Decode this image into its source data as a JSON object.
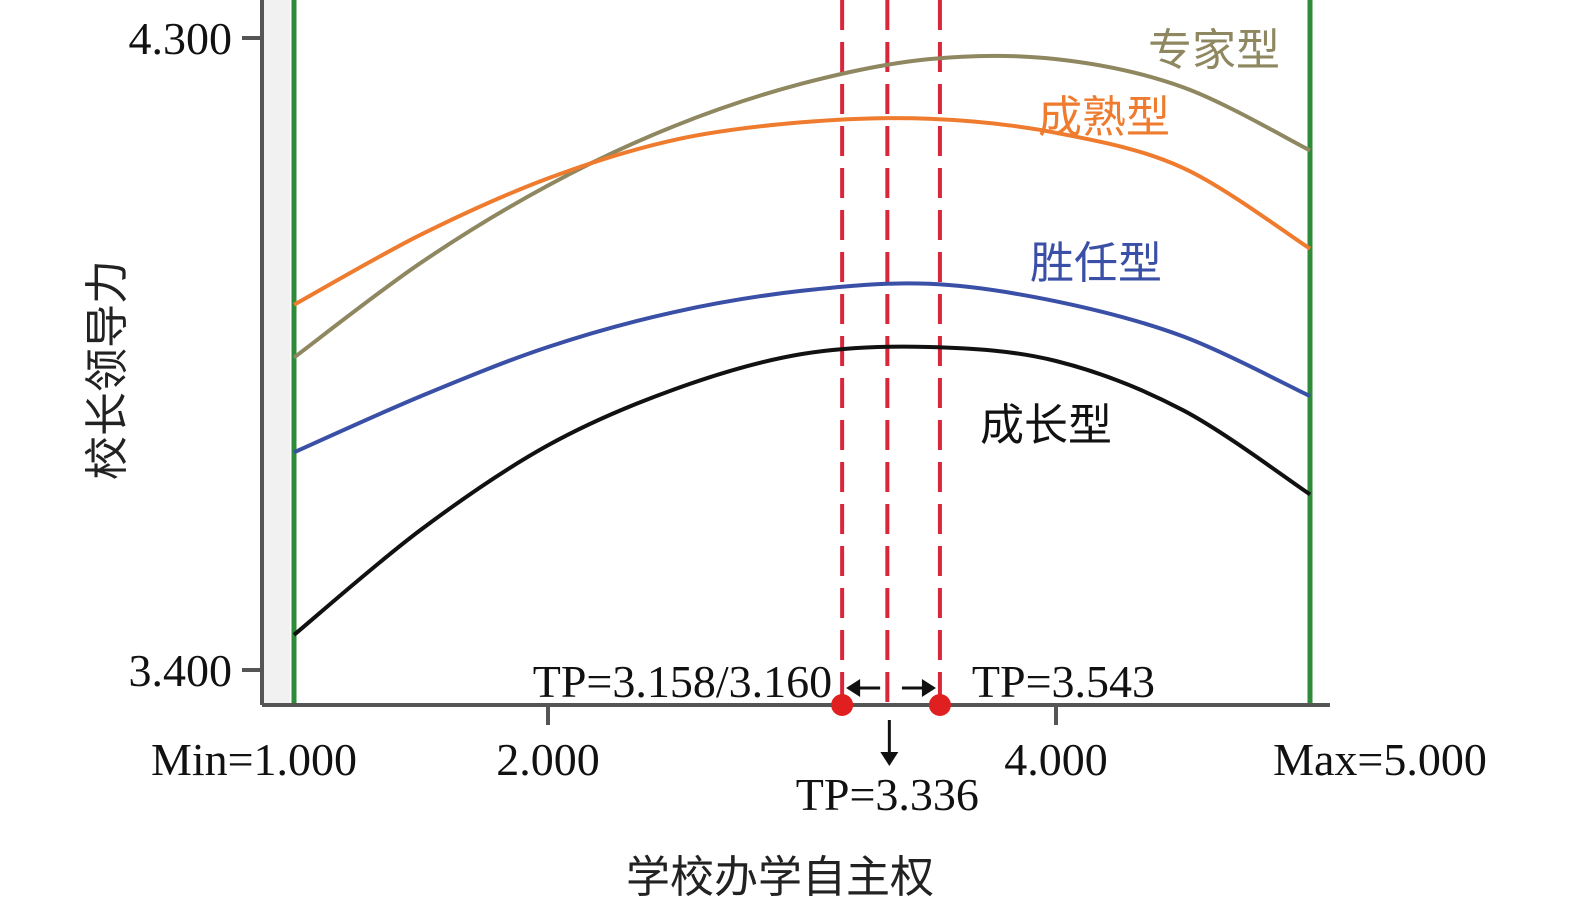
{
  "chart_data": {
    "type": "line",
    "xlabel": "学校办学自主权",
    "ylabel": "校长领导力",
    "xlim": [
      1.0,
      5.0
    ],
    "ylim": [
      3.4,
      4.3
    ],
    "x_ticks": [
      {
        "value": 1.0,
        "label": "Min=1.000"
      },
      {
        "value": 2.0,
        "label": "2.000"
      },
      {
        "value": 4.0,
        "label": "4.000"
      },
      {
        "value": 5.0,
        "label": "Max=5.000"
      }
    ],
    "y_ticks": [
      {
        "value": 4.3,
        "label": "4.300"
      },
      {
        "value": 3.4,
        "label": "3.400"
      }
    ],
    "boundary_lines": [
      1.0,
      5.0
    ],
    "turning_points": [
      {
        "value": 3.158,
        "label": "TP=3.158/3.160"
      },
      {
        "value": 3.336,
        "label": "TP=3.336"
      },
      {
        "value": 3.543,
        "label": "TP=3.543"
      }
    ],
    "series": [
      {
        "name": "专家型",
        "color": "#8e8760",
        "x": [
          1.0,
          1.5,
          2.0,
          2.5,
          3.0,
          3.5,
          4.0,
          4.5,
          5.0
        ],
        "y": [
          3.845,
          3.98,
          4.09,
          4.175,
          4.235,
          4.27,
          4.27,
          4.23,
          4.14
        ]
      },
      {
        "name": "成熟型",
        "color": "#ee7b2e",
        "x": [
          1.0,
          1.5,
          2.0,
          2.5,
          3.0,
          3.5,
          4.0,
          4.5,
          5.0
        ],
        "y": [
          3.92,
          4.02,
          4.1,
          4.155,
          4.18,
          4.185,
          4.165,
          4.115,
          4.0
        ]
      },
      {
        "name": "胜任型",
        "color": "#3a4fa6",
        "x": [
          1.0,
          1.5,
          2.0,
          2.5,
          3.0,
          3.5,
          4.0,
          4.5,
          5.0
        ],
        "y": [
          3.71,
          3.79,
          3.86,
          3.91,
          3.94,
          3.95,
          3.925,
          3.875,
          3.79
        ]
      },
      {
        "name": "成长型",
        "color": "#111111",
        "x": [
          1.0,
          1.5,
          2.0,
          2.5,
          3.0,
          3.5,
          4.0,
          4.5,
          5.0
        ],
        "y": [
          3.45,
          3.6,
          3.72,
          3.8,
          3.85,
          3.86,
          3.84,
          3.77,
          3.65
        ]
      }
    ],
    "colors": {
      "boundary": "#2e8b3a",
      "turning_point_line": "#d9263b",
      "turning_point_marker": "#e02020",
      "axis": "#555555"
    }
  }
}
